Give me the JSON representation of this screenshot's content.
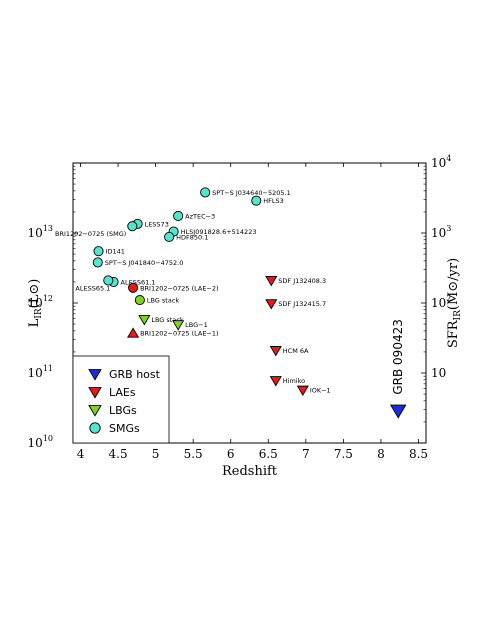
{
  "chart_data": {
    "type": "scatter",
    "xlabel": "Redshift",
    "ylabel": "L_IR (L_⊙)",
    "ylabel_main": "L",
    "ylabel_sub": "IR",
    "ylabel_unit": "(L⊙)",
    "y2label": "SFR_IR (M⊙/yr)",
    "y2label_main": "SFR",
    "y2label_sub": "IR",
    "y2label_unit": "(M⊙/yr)",
    "xlim": [
      3.9,
      8.6
    ],
    "ylim": [
      10000000000.0,
      100000000000000.0
    ],
    "yscale": "log",
    "y2lim": [
      1,
      10000
    ],
    "y2scale": "log",
    "xticks": [
      "4",
      "4.5",
      "5",
      "5.5",
      "6",
      "6.5",
      "7",
      "7.5",
      "8",
      "8.5"
    ],
    "xtick_values": [
      4,
      4.5,
      5,
      5.5,
      6,
      6.5,
      7,
      7.5,
      8,
      8.5
    ],
    "yticks": [
      {
        "value": 10000000000.0,
        "base": "10",
        "exp": "10"
      },
      {
        "value": 100000000000.0,
        "base": "10",
        "exp": "11"
      },
      {
        "value": 1000000000000.0,
        "base": "10",
        "exp": "12"
      },
      {
        "value": 10000000000000.0,
        "base": "10",
        "exp": "13"
      }
    ],
    "y2ticks": [
      {
        "value": 10,
        "text": "10",
        "exp": ""
      },
      {
        "value": 100,
        "base": "10",
        "exp": "2"
      },
      {
        "value": 1000,
        "base": "10",
        "exp": "3"
      },
      {
        "value": 10000,
        "base": "10",
        "exp": "4"
      }
    ],
    "legend_position": "bottom-left",
    "colors": {
      "grb": "#1c2cd8",
      "lae": "#e01b1b",
      "lbg": "#7ed321",
      "smg": "#58e3cf",
      "lae2": "#e01b1b"
    },
    "series": [
      {
        "name": "SMGs",
        "marker": "circle",
        "color": "#58e3cf",
        "points": [
          {
            "x": 5.66,
            "y": 38000000000000.0,
            "label": "SPT−S J034640−5205.1",
            "label_side": "right"
          },
          {
            "x": 6.34,
            "y": 29000000000000.0,
            "label": "HFLS3",
            "label_side": "right"
          },
          {
            "x": 5.3,
            "y": 17500000000000.0,
            "label": "AzTEC−3",
            "label_side": "right"
          },
          {
            "x": 4.76,
            "y": 13500000000000.0,
            "label": "LESS73",
            "label_side": "right"
          },
          {
            "x": 4.69,
            "y": 12500000000000.0,
            "label": "BRI1202−0725 (SMG)",
            "label_side": "left"
          },
          {
            "x": 5.24,
            "y": 10500000000000.0,
            "label": "HLSJ091828.6+514223",
            "label_side": "right"
          },
          {
            "x": 5.18,
            "y": 8800000000000.0,
            "label": "HDF850.1",
            "label_side": "right"
          },
          {
            "x": 4.24,
            "y": 5500000000000.0,
            "label": "ID141",
            "label_side": "right"
          },
          {
            "x": 4.23,
            "y": 3800000000000.0,
            "label": "SPT−S J041840−4752.0",
            "label_side": "right"
          },
          {
            "x": 4.44,
            "y": 2000000000000.0,
            "label": "ALESS61.1",
            "label_side": "right"
          },
          {
            "x": 4.37,
            "y": 2100000000000.0,
            "label": "ALESS65.1",
            "label_side": "leftbelow"
          }
        ]
      },
      {
        "name": "LBGs",
        "marker": "tri-down",
        "color": "#7ed321",
        "points": [
          {
            "x": 4.85,
            "y": 580000000000.0,
            "label": "LBG stack",
            "label_side": "right"
          },
          {
            "x": 5.3,
            "y": 490000000000.0,
            "label": "LBG−1",
            "label_side": "right"
          },
          {
            "x": 4.79,
            "y": 1100000000000.0,
            "label": "LBG stack",
            "label_side": "right",
            "marker": "circle"
          }
        ]
      },
      {
        "name": "LAEs",
        "marker": "tri-down",
        "color": "#e01b1b",
        "points": [
          {
            "x": 6.54,
            "y": 2100000000000.0,
            "label": "SDF J132408.3",
            "label_side": "right"
          },
          {
            "x": 6.54,
            "y": 980000000000.0,
            "label": "SDF J132415.7",
            "label_side": "right"
          },
          {
            "x": 6.6,
            "y": 210000000000.0,
            "label": "HCM 6A",
            "label_side": "right"
          },
          {
            "x": 6.6,
            "y": 78000000000.0,
            "label": "Himiko",
            "label_side": "right"
          },
          {
            "x": 6.96,
            "y": 57000000000.0,
            "label": "IOK−1",
            "label_side": "right"
          },
          {
            "x": 4.7,
            "y": 1650000000000.0,
            "label": "BRI1202−0725 (LAE−2)",
            "label_side": "right",
            "marker": "circle"
          },
          {
            "x": 4.7,
            "y": 370000000000.0,
            "label": "BRI1202−0725 (LAE−1)",
            "label_side": "right",
            "marker": "tri-up"
          }
        ]
      },
      {
        "name": "GRB host",
        "marker": "tri-down",
        "color": "#1c2cd8",
        "points": [
          {
            "x": 8.23,
            "y": 29000000000.0,
            "label": "GRB 090423",
            "label_side": "vertical"
          }
        ]
      }
    ],
    "legend": [
      {
        "label": "GRB host",
        "marker": "tri-down",
        "color": "#1c2cd8"
      },
      {
        "label": "LAEs",
        "marker": "tri-down",
        "color": "#e01b1b"
      },
      {
        "label": "LBGs",
        "marker": "tri-down",
        "color": "#7ed321"
      },
      {
        "label": "SMGs",
        "marker": "circle",
        "color": "#58e3cf"
      }
    ]
  }
}
